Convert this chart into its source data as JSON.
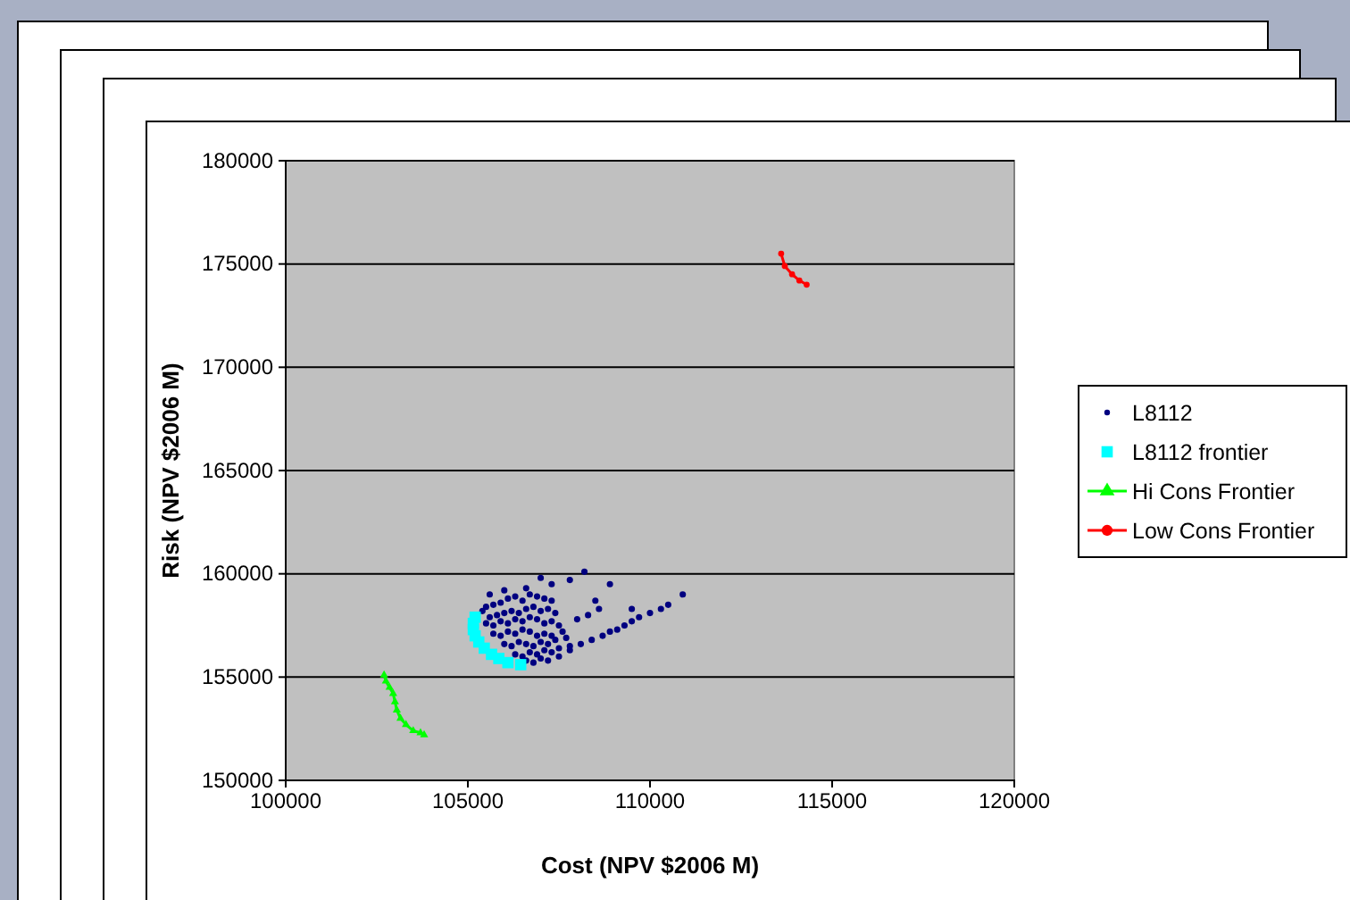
{
  "chart_data": {
    "type": "scatter",
    "xlabel": "Cost (NPV $2006 M)",
    "ylabel": "Risk (NPV $2006 M)",
    "xlim": [
      100000,
      120000
    ],
    "xticks": [
      100000,
      105000,
      110000,
      115000,
      120000
    ],
    "ylim": [
      150000,
      180000
    ],
    "yticks": [
      150000,
      155000,
      160000,
      165000,
      170000,
      175000,
      180000
    ],
    "grid": "y",
    "legend": "right",
    "series": [
      {
        "name": "L8112",
        "color": "#000080",
        "marker": "circle",
        "x": [
          105400,
          105500,
          105700,
          105900,
          106100,
          106300,
          106500,
          106700,
          106900,
          107100,
          107300,
          105600,
          105800,
          106000,
          106200,
          106400,
          106600,
          106800,
          107000,
          107200,
          107400,
          105500,
          105700,
          105900,
          106100,
          106300,
          106500,
          106700,
          106900,
          107100,
          107300,
          107500,
          105700,
          105900,
          106100,
          106300,
          106500,
          106700,
          106900,
          107100,
          107300,
          107600,
          106000,
          106200,
          106400,
          106600,
          106800,
          107000,
          107200,
          107400,
          107700,
          106300,
          106500,
          106700,
          106900,
          107100,
          107300,
          107500,
          107800,
          106600,
          106800,
          107000,
          107200,
          107500,
          107800,
          108100,
          108400,
          108700,
          108900,
          109100,
          109300,
          109500,
          109700,
          110000,
          110300,
          110500,
          108000,
          108300,
          108600,
          107300,
          107800,
          108200,
          108900,
          106600,
          106000,
          105600,
          107000,
          108500,
          109500,
          110900
        ],
        "values": [
          158200,
          158400,
          158500,
          158600,
          158800,
          158900,
          158700,
          159000,
          158900,
          158800,
          158700,
          157900,
          158000,
          158100,
          158200,
          158100,
          158300,
          158400,
          158200,
          158300,
          158100,
          157600,
          157500,
          157700,
          157600,
          157800,
          157700,
          157900,
          157800,
          157600,
          157700,
          157500,
          157100,
          157000,
          157200,
          157100,
          157300,
          157200,
          157000,
          157100,
          157000,
          157200,
          156600,
          156500,
          156700,
          156600,
          156500,
          156700,
          156600,
          156800,
          156900,
          156100,
          156000,
          156200,
          156100,
          156300,
          156200,
          156400,
          156500,
          155800,
          155700,
          155900,
          155800,
          156000,
          156300,
          156600,
          156800,
          157000,
          157200,
          157300,
          157500,
          157700,
          157900,
          158100,
          158300,
          158500,
          157800,
          158000,
          158300,
          159500,
          159700,
          160100,
          159500,
          159300,
          159200,
          159000,
          159800,
          158700,
          158300,
          159000
        ]
      },
      {
        "name": "L8112 frontier",
        "color": "#00ffff",
        "marker": "square",
        "x": [
          105200,
          105150,
          105150,
          105200,
          105300,
          105450,
          105650,
          105850,
          106100,
          106450
        ],
        "values": [
          157900,
          157600,
          157300,
          157000,
          156700,
          156400,
          156100,
          155900,
          155700,
          155600
        ]
      },
      {
        "name": "Hi Cons Frontier",
        "color": "#00ff00",
        "type": "line",
        "marker": "triangle",
        "x": [
          102700,
          102750,
          102850,
          102950,
          103000,
          103050,
          103150,
          103300,
          103500,
          103700,
          103800
        ],
        "values": [
          155100,
          154800,
          154500,
          154200,
          153800,
          153400,
          153000,
          152700,
          152400,
          152300,
          152200
        ]
      },
      {
        "name": "Low Cons Frontier",
        "color": "#ff0000",
        "type": "line",
        "marker": "circle",
        "x": [
          113600,
          113700,
          113900,
          114100,
          114300
        ],
        "values": [
          175500,
          174900,
          174500,
          174200,
          174000
        ]
      }
    ]
  }
}
